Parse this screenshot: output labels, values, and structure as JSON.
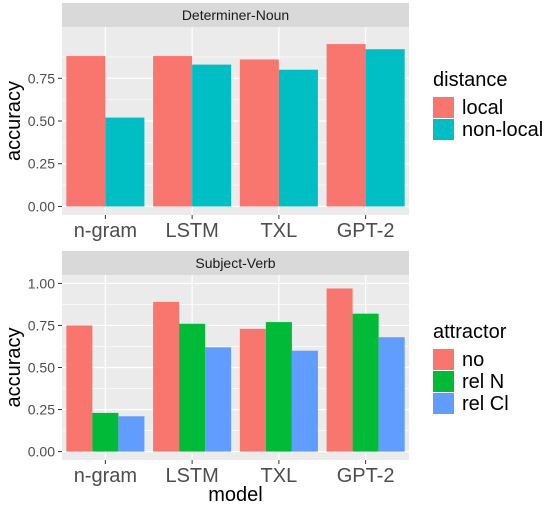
{
  "chart_data": [
    {
      "type": "bar",
      "title": "Determiner-Noun",
      "categories": [
        "n-gram",
        "LSTM",
        "TXL",
        "GPT-2"
      ],
      "ylim": [
        0,
        1.0
      ],
      "yticks": [
        0.0,
        0.25,
        0.5,
        0.75
      ],
      "ytick_labels": [
        "0.00",
        "0.25",
        "0.50",
        "0.75"
      ],
      "grid": true,
      "legend": {
        "title": "distance",
        "position": "right"
      },
      "series": [
        {
          "name": "local",
          "color": "#F8766D",
          "values": [
            0.88,
            0.88,
            0.86,
            0.95
          ]
        },
        {
          "name": "non-local",
          "color": "#00BFC4",
          "values": [
            0.52,
            0.83,
            0.8,
            0.92
          ]
        }
      ]
    },
    {
      "type": "bar",
      "title": "Subject-Verb",
      "categories": [
        "n-gram",
        "LSTM",
        "TXL",
        "GPT-2"
      ],
      "ylim": [
        0,
        1.0
      ],
      "yticks": [
        0.0,
        0.25,
        0.5,
        0.75,
        1.0
      ],
      "ytick_labels": [
        "0.00",
        "0.25",
        "0.50",
        "0.75",
        "1.00"
      ],
      "grid": true,
      "legend": {
        "title": "attractor",
        "position": "right"
      },
      "series": [
        {
          "name": "no",
          "color": "#F8766D",
          "values": [
            0.75,
            0.89,
            0.73,
            0.97
          ]
        },
        {
          "name": "rel N",
          "color": "#00BA38",
          "values": [
            0.23,
            0.76,
            0.77,
            0.82
          ]
        },
        {
          "name": "rel Cl",
          "color": "#619CFF",
          "values": [
            0.21,
            0.62,
            0.6,
            0.68
          ]
        }
      ]
    }
  ],
  "axes": {
    "ylabel": "accuracy",
    "xlabel": "model"
  },
  "colors": {
    "panel_bg": "#EBEBEB",
    "strip_bg": "#D9D9D9",
    "grid": "#FFFFFF",
    "axis_text": "#4D4D4D"
  }
}
